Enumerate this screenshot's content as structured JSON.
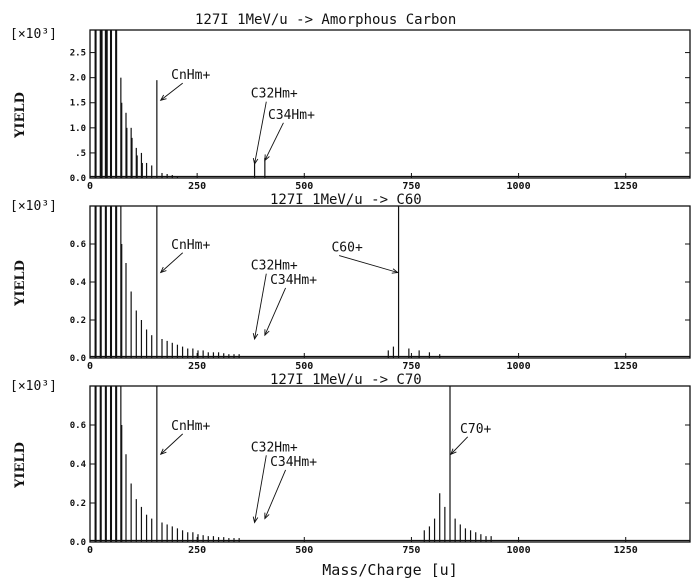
{
  "xlabel": "Mass/Charge [u]",
  "chart_data": [
    {
      "type": "line",
      "title": "127I 1MeV/u -> Amorphous Carbon",
      "ylabel": "YIELD",
      "y_multiplier": "[×10³]",
      "xlim": [
        0,
        1400
      ],
      "ylim": [
        0,
        2.95
      ],
      "x_ticks": [
        0,
        250,
        500,
        750,
        1000,
        1250
      ],
      "x_tick_labels": [
        "0",
        "250",
        "500",
        "750",
        "1000",
        "1250"
      ],
      "y_ticks": [
        0,
        0.5,
        1.0,
        1.5,
        2.0,
        2.5
      ],
      "y_tick_labels": [
        "0.0",
        ".5",
        "1.0",
        "1.5",
        "2.0",
        "2.5"
      ],
      "peaks": [
        [
          12,
          2.95
        ],
        [
          14,
          2.95
        ],
        [
          24,
          2.95
        ],
        [
          26,
          2.95
        ],
        [
          27,
          2.95
        ],
        [
          28,
          2.95
        ],
        [
          36,
          2.95
        ],
        [
          38,
          2.95
        ],
        [
          39,
          2.95
        ],
        [
          40,
          2.95
        ],
        [
          48,
          2.95
        ],
        [
          50,
          2.95
        ],
        [
          60,
          2.95
        ],
        [
          62,
          2.95
        ],
        [
          72,
          2.0
        ],
        [
          74,
          1.5
        ],
        [
          84,
          1.3
        ],
        [
          86,
          1.0
        ],
        [
          96,
          1.0
        ],
        [
          98,
          0.8
        ],
        [
          108,
          0.6
        ],
        [
          110,
          0.45
        ],
        [
          120,
          0.5
        ],
        [
          122,
          0.3
        ],
        [
          132,
          0.3
        ],
        [
          144,
          0.25
        ],
        [
          156,
          1.95
        ],
        [
          168,
          0.1
        ],
        [
          180,
          0.08
        ],
        [
          192,
          0.06
        ],
        [
          204,
          0.04
        ],
        [
          384,
          0.35
        ],
        [
          408,
          0.4
        ]
      ],
      "annotations": [
        {
          "text": "CnHm+",
          "label_x": 235,
          "label_y": 1.97,
          "target_x": 165,
          "target_y": 1.55
        },
        {
          "text": "C32Hm+",
          "label_x": 430,
          "label_y": 1.6,
          "target_x": 384,
          "target_y": 0.28
        },
        {
          "text": "C34Hm+",
          "label_x": 470,
          "label_y": 1.18,
          "target_x": 408,
          "target_y": 0.35
        }
      ]
    },
    {
      "type": "line",
      "title": "127I 1MeV/u -> C60",
      "ylabel": "YIELD",
      "y_multiplier": "[×10³]",
      "xlim": [
        0,
        1400
      ],
      "ylim": [
        0,
        0.8
      ],
      "x_ticks": [
        0,
        250,
        500,
        750,
        1000,
        1250
      ],
      "x_tick_labels": [
        "0",
        "250",
        "500",
        "750",
        "1000",
        "1250"
      ],
      "y_ticks": [
        0,
        0.2,
        0.4,
        0.6
      ],
      "y_tick_labels": [
        "0.0",
        "0.2",
        "0.4",
        "0.6"
      ],
      "peaks": [
        [
          12,
          0.8
        ],
        [
          14,
          0.8
        ],
        [
          24,
          0.8
        ],
        [
          26,
          0.8
        ],
        [
          36,
          0.8
        ],
        [
          38,
          0.8
        ],
        [
          48,
          0.8
        ],
        [
          50,
          0.8
        ],
        [
          60,
          0.8
        ],
        [
          62,
          0.8
        ],
        [
          72,
          0.8
        ],
        [
          74,
          0.6
        ],
        [
          84,
          0.5
        ],
        [
          96,
          0.35
        ],
        [
          108,
          0.25
        ],
        [
          120,
          0.2
        ],
        [
          132,
          0.15
        ],
        [
          144,
          0.12
        ],
        [
          156,
          0.8
        ],
        [
          168,
          0.1
        ],
        [
          180,
          0.09
        ],
        [
          192,
          0.08
        ],
        [
          204,
          0.07
        ],
        [
          216,
          0.06
        ],
        [
          228,
          0.05
        ],
        [
          240,
          0.05
        ],
        [
          252,
          0.04
        ],
        [
          264,
          0.04
        ],
        [
          276,
          0.03
        ],
        [
          288,
          0.03
        ],
        [
          300,
          0.03
        ],
        [
          312,
          0.025
        ],
        [
          324,
          0.02
        ],
        [
          336,
          0.02
        ],
        [
          348,
          0.02
        ],
        [
          696,
          0.04
        ],
        [
          708,
          0.06
        ],
        [
          720,
          0.8
        ],
        [
          744,
          0.05
        ],
        [
          768,
          0.04
        ],
        [
          792,
          0.03
        ],
        [
          816,
          0.02
        ]
      ],
      "annotations": [
        {
          "text": "CnHm+",
          "label_x": 235,
          "label_y": 0.575,
          "target_x": 165,
          "target_y": 0.45
        },
        {
          "text": "C32Hm+",
          "label_x": 430,
          "label_y": 0.465,
          "target_x": 384,
          "target_y": 0.1
        },
        {
          "text": "C34Hm+",
          "label_x": 475,
          "label_y": 0.39,
          "target_x": 408,
          "target_y": 0.12
        },
        {
          "text": "C60+",
          "label_x": 600,
          "label_y": 0.56,
          "target_x": 718,
          "target_y": 0.45
        }
      ]
    },
    {
      "type": "line",
      "title": "127I 1MeV/u -> C70",
      "ylabel": "YIELD",
      "y_multiplier": "[×10³]",
      "xlim": [
        0,
        1400
      ],
      "ylim": [
        0,
        0.8
      ],
      "x_ticks": [
        0,
        250,
        500,
        750,
        1000,
        1250
      ],
      "x_tick_labels": [
        "0",
        "250",
        "500",
        "750",
        "1000",
        "1250"
      ],
      "y_ticks": [
        0,
        0.2,
        0.4,
        0.6
      ],
      "y_tick_labels": [
        "0.0",
        "0.2",
        "0.4",
        "0.6"
      ],
      "peaks": [
        [
          12,
          0.8
        ],
        [
          14,
          0.8
        ],
        [
          24,
          0.8
        ],
        [
          26,
          0.8
        ],
        [
          36,
          0.8
        ],
        [
          38,
          0.8
        ],
        [
          48,
          0.8
        ],
        [
          50,
          0.8
        ],
        [
          60,
          0.8
        ],
        [
          62,
          0.8
        ],
        [
          72,
          0.8
        ],
        [
          74,
          0.6
        ],
        [
          84,
          0.45
        ],
        [
          96,
          0.3
        ],
        [
          108,
          0.22
        ],
        [
          120,
          0.18
        ],
        [
          132,
          0.14
        ],
        [
          144,
          0.12
        ],
        [
          156,
          0.8
        ],
        [
          168,
          0.1
        ],
        [
          180,
          0.09
        ],
        [
          192,
          0.08
        ],
        [
          204,
          0.07
        ],
        [
          216,
          0.06
        ],
        [
          228,
          0.05
        ],
        [
          240,
          0.05
        ],
        [
          252,
          0.04
        ],
        [
          264,
          0.035
        ],
        [
          276,
          0.03
        ],
        [
          288,
          0.03
        ],
        [
          300,
          0.025
        ],
        [
          312,
          0.025
        ],
        [
          324,
          0.02
        ],
        [
          336,
          0.02
        ],
        [
          348,
          0.02
        ],
        [
          780,
          0.06
        ],
        [
          792,
          0.08
        ],
        [
          804,
          0.12
        ],
        [
          816,
          0.25
        ],
        [
          828,
          0.18
        ],
        [
          840,
          0.8
        ],
        [
          852,
          0.12
        ],
        [
          864,
          0.09
        ],
        [
          876,
          0.07
        ],
        [
          888,
          0.06
        ],
        [
          900,
          0.05
        ],
        [
          912,
          0.04
        ],
        [
          924,
          0.03
        ],
        [
          936,
          0.03
        ]
      ],
      "annotations": [
        {
          "text": "CnHm+",
          "label_x": 235,
          "label_y": 0.575,
          "target_x": 165,
          "target_y": 0.45
        },
        {
          "text": "C32Hm+",
          "label_x": 430,
          "label_y": 0.465,
          "target_x": 384,
          "target_y": 0.1
        },
        {
          "text": "C34Hm+",
          "label_x": 475,
          "label_y": 0.39,
          "target_x": 408,
          "target_y": 0.12
        },
        {
          "text": "C70+",
          "label_x": 900,
          "label_y": 0.56,
          "target_x": 842,
          "target_y": 0.45
        }
      ]
    }
  ]
}
